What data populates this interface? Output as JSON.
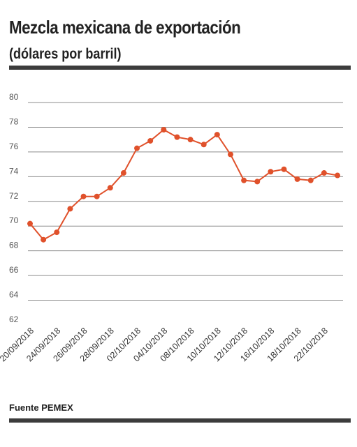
{
  "header": {
    "title": "Mezcla mexicana de exportación",
    "subtitle": "(dólares por barril)"
  },
  "footer": {
    "source": "Fuente PEMEX"
  },
  "colors": {
    "series": "#e0512b",
    "grid": "#8c8c8c",
    "rule": "#3c3c3c"
  },
  "chart_data": {
    "type": "line",
    "title": "Mezcla mexicana de exportación",
    "subtitle": "(dólares por barril)",
    "xlabel": "",
    "ylabel": "",
    "ylim": [
      62,
      80
    ],
    "yticks": [
      62,
      64,
      66,
      68,
      70,
      72,
      74,
      76,
      78,
      80
    ],
    "grid": true,
    "legend": "none",
    "x": [
      "20/09/2018",
      "21/09/2018",
      "24/09/2018",
      "25/09/2018",
      "26/09/2018",
      "27/09/2018",
      "28/09/2018",
      "01/10/2018",
      "02/10/2018",
      "03/10/2018",
      "04/10/2018",
      "05/10/2018",
      "08/10/2018",
      "09/10/2018",
      "10/10/2018",
      "11/10/2018",
      "12/10/2018",
      "15/10/2018",
      "16/10/2018",
      "17/10/2018",
      "18/10/2018",
      "19/10/2018",
      "22/10/2018",
      "23/10/2018"
    ],
    "xtick_labels": [
      "20/09/2018",
      "24/09/2018",
      "26/09/2018",
      "28/09/2018",
      "02/10/2018",
      "04/10/2018",
      "08/10/2018",
      "10/10/2018",
      "12/10/2018",
      "16/10/2018",
      "18/10/2018",
      "22/10/2018"
    ],
    "series": [
      {
        "values": [
          70.2,
          68.9,
          69.5,
          71.4,
          72.4,
          72.4,
          73.1,
          74.3,
          76.3,
          76.9,
          77.8,
          77.2,
          77.0,
          76.6,
          77.4,
          75.8,
          73.7,
          73.6,
          74.4,
          74.6,
          73.8,
          73.7,
          74.3,
          74.1
        ]
      }
    ]
  }
}
